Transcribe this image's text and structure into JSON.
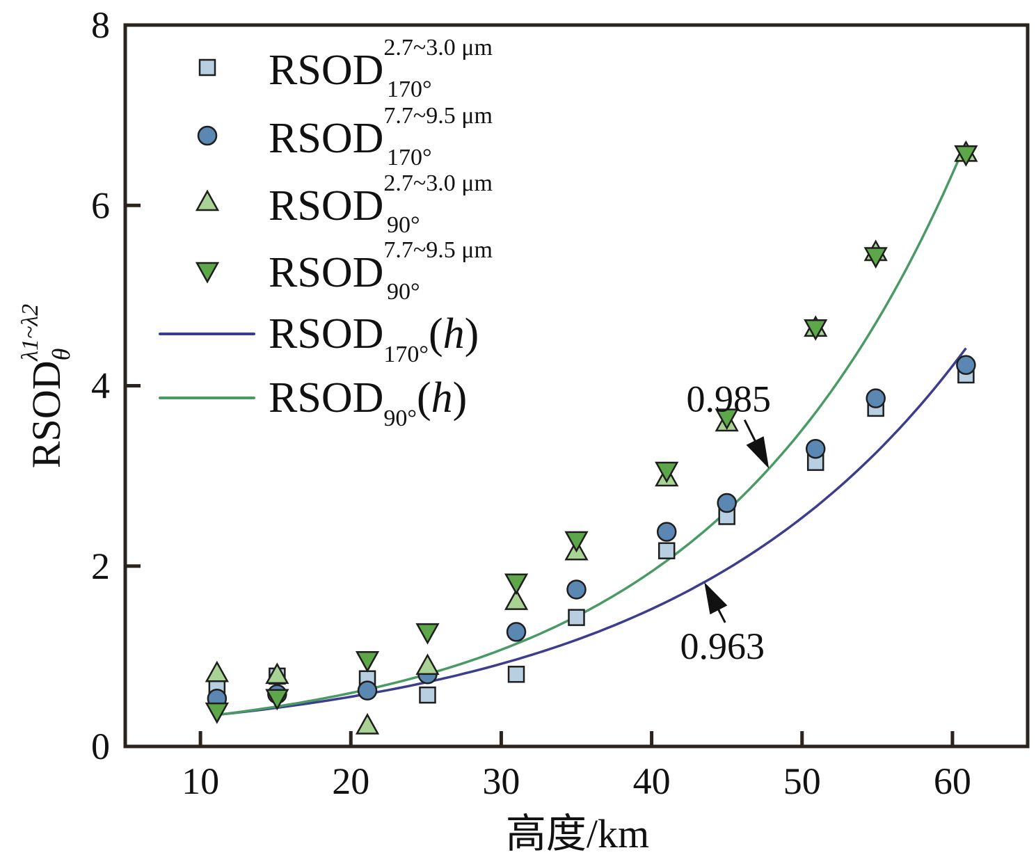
{
  "chart_data": {
    "type": "scatter",
    "title": "",
    "xlabel": "高度/km",
    "ylabel": {
      "main": "RSOD",
      "sup": "λ1~λ2",
      "sub": "θ"
    },
    "xlim": [
      5,
      65
    ],
    "ylim": [
      0,
      8
    ],
    "xticks": [
      10,
      20,
      30,
      40,
      50,
      60
    ],
    "yticks": [
      0,
      2,
      4,
      6,
      8
    ],
    "grid": false,
    "legend_position": "top-left",
    "x": [
      11.1,
      15.1,
      21.1,
      25.1,
      31.0,
      35.0,
      41.0,
      45.0,
      50.9,
      54.9,
      60.9
    ],
    "series": [
      {
        "name": "RSOD 170° 2.7~3.0 μm",
        "legend": {
          "main": "RSOD",
          "sup": "2.7~3.0 μm",
          "sub": "170°"
        },
        "marker": "square",
        "color": "#b7cfe0",
        "values": [
          0.68,
          0.78,
          0.75,
          0.57,
          0.8,
          1.43,
          2.17,
          2.55,
          3.15,
          3.75,
          4.12
        ]
      },
      {
        "name": "RSOD 170° 7.7~9.5 μm",
        "legend": {
          "main": "RSOD",
          "sup": "7.7~9.5 μm",
          "sub": "170°"
        },
        "marker": "circle",
        "color": "#5b87b3",
        "values": [
          0.53,
          0.58,
          0.62,
          0.8,
          1.27,
          1.74,
          2.38,
          2.7,
          3.3,
          3.86,
          4.23
        ]
      },
      {
        "name": "RSOD 90° 2.7~3.0 μm",
        "legend": {
          "main": "RSOD",
          "sup": "2.7~3.0 μm",
          "sub": "90°"
        },
        "marker": "triangle-up",
        "color": "#a9d394",
        "values": [
          0.8,
          0.78,
          0.22,
          0.88,
          1.6,
          2.15,
          2.97,
          3.58,
          4.63,
          5.47,
          6.57
        ]
      },
      {
        "name": "RSOD 90° 7.7~9.5 μm",
        "legend": {
          "main": "RSOD",
          "sup": "7.7~9.5 μm",
          "sub": "90°"
        },
        "marker": "triangle-down",
        "color": "#5ea64a",
        "values": [
          0.4,
          0.55,
          0.97,
          1.28,
          1.83,
          2.3,
          3.07,
          3.66,
          4.65,
          5.45,
          6.58
        ]
      }
    ],
    "fits": [
      {
        "name": "RSOD 170°(h)",
        "legend": {
          "main": "RSOD",
          "sub": "170°",
          "arg": "(h)"
        },
        "color": "#3d3d8f",
        "model": "exponential",
        "a": 0.199,
        "b": 0.0509,
        "x_range": [
          11.1,
          60.9
        ],
        "r2_label": "0.963"
      },
      {
        "name": "RSOD 90°(h)",
        "legend": {
          "main": "RSOD",
          "sub": "90°",
          "arg": "(h)"
        },
        "color": "#4a9a66",
        "model": "exponential",
        "a": 0.181,
        "b": 0.0593,
        "x_range": [
          11.1,
          60.9
        ],
        "r2_label": "0.985"
      }
    ],
    "annotations": [
      {
        "text": "0.985",
        "target_fit": 1,
        "target_x": 47.8
      },
      {
        "text": "0.963",
        "target_fit": 0,
        "target_x": 43.5
      }
    ]
  }
}
